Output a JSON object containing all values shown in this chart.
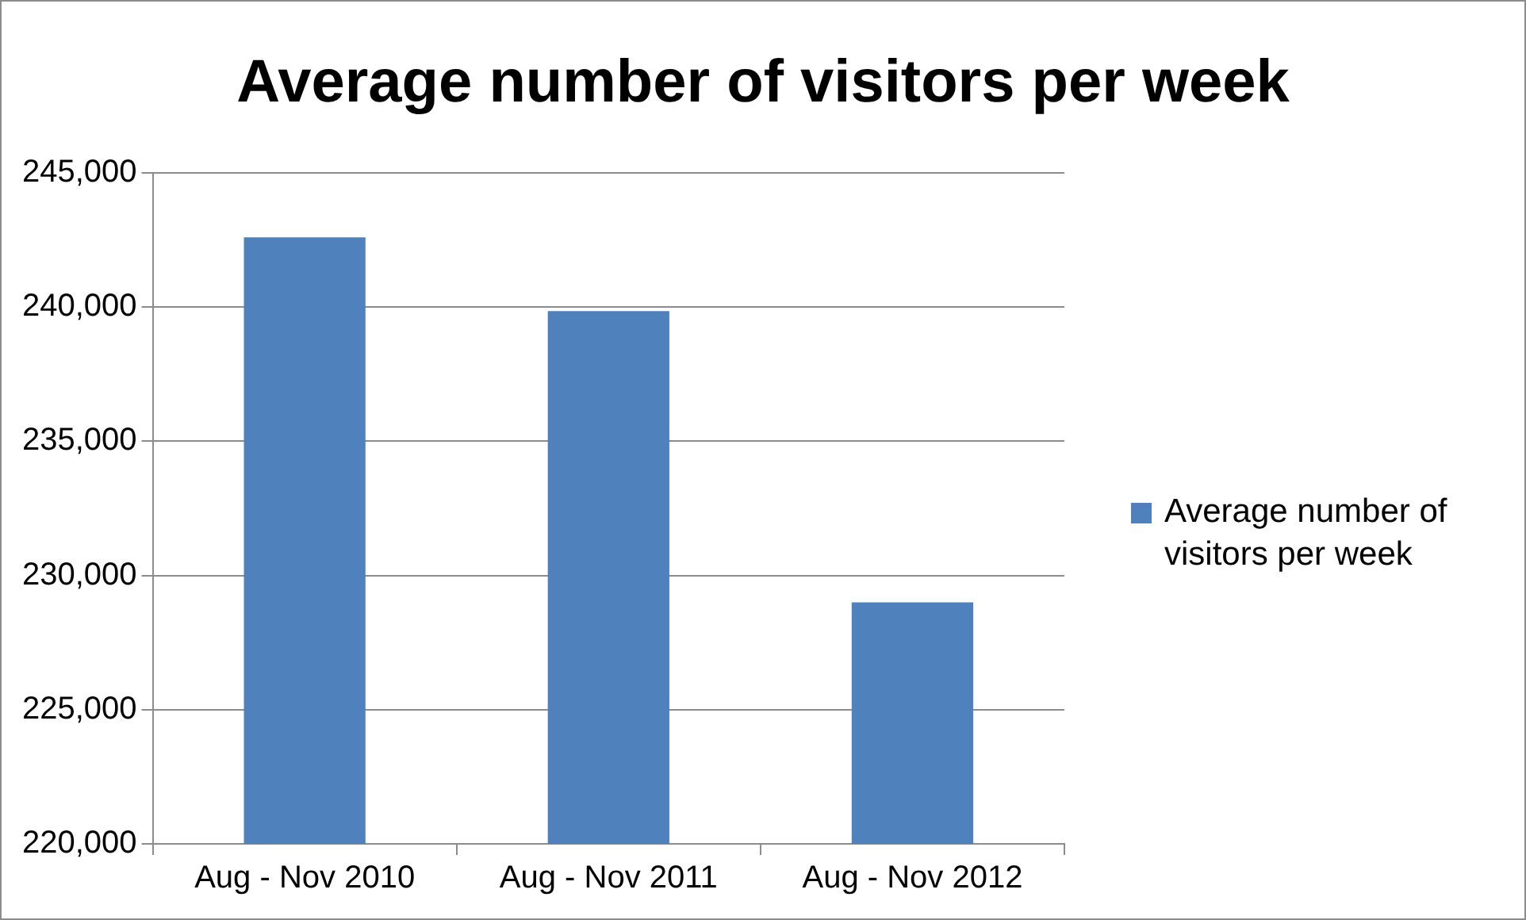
{
  "chart_data": {
    "type": "bar",
    "title": "Average number of visitors per week",
    "categories": [
      "Aug - Nov 2010",
      "Aug - Nov 2011",
      "Aug - Nov 2012"
    ],
    "series": [
      {
        "name": "Average number of visitors per week",
        "color": "#4f81bd",
        "values": [
          242600,
          239850,
          229000
        ]
      }
    ],
    "ylim": [
      220000,
      245000
    ],
    "yticks": [
      {
        "value": 220000,
        "label": "220,000"
      },
      {
        "value": 225000,
        "label": "225,000"
      },
      {
        "value": 230000,
        "label": "230,000"
      },
      {
        "value": 235000,
        "label": "235,000"
      },
      {
        "value": 240000,
        "label": "240,000"
      },
      {
        "value": 245000,
        "label": "245,000"
      }
    ],
    "grid": "y",
    "legend": "right"
  }
}
